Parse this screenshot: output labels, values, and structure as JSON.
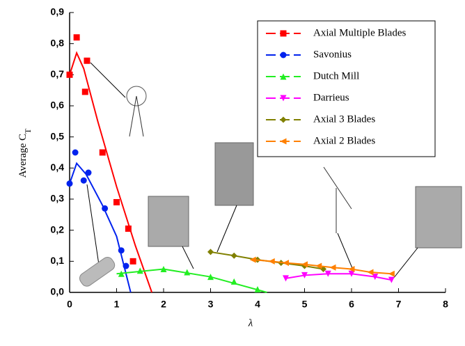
{
  "chart_data": {
    "type": "scatter",
    "x_label": "λ",
    "y_label": "Average C",
    "y_label_sub": "T",
    "xlim": [
      0,
      8
    ],
    "ylim": [
      0,
      0.9
    ],
    "xticks": [
      0,
      1,
      2,
      3,
      4,
      5,
      6,
      7,
      8
    ],
    "yticks": [
      {
        "value": 0,
        "label": "0,0"
      },
      {
        "value": 0.1,
        "label": "0,1"
      },
      {
        "value": 0.2,
        "label": "0,2"
      },
      {
        "value": 0.3,
        "label": "0,3"
      },
      {
        "value": 0.4,
        "label": "0,4"
      },
      {
        "value": 0.5,
        "label": "0,5"
      },
      {
        "value": 0.6,
        "label": "0,6"
      },
      {
        "value": 0.7,
        "label": "0,7"
      },
      {
        "value": 0.8,
        "label": "0,8"
      },
      {
        "value": 0.9,
        "label": "0,9"
      }
    ],
    "legend": "top-right",
    "series": [
      {
        "name": "Axial Multiple Blades",
        "color": "#ff0000",
        "marker": "square",
        "x": [
          0.0,
          0.15,
          0.33,
          0.37,
          0.7,
          1.0,
          1.25,
          1.35
        ],
        "values": [
          0.7,
          0.82,
          0.645,
          0.745,
          0.45,
          0.29,
          0.205,
          0.1
        ],
        "curve": {
          "x": [
            0,
            0.15,
            0.3,
            0.6,
            1.0,
            1.4,
            1.75
          ],
          "values": [
            0.7,
            0.77,
            0.72,
            0.55,
            0.34,
            0.15,
            0.0
          ]
        }
      },
      {
        "name": "Savonius",
        "color": "#0022ee",
        "marker": "circle",
        "x": [
          0.0,
          0.12,
          0.3,
          0.4,
          0.75,
          1.1,
          1.2
        ],
        "values": [
          0.35,
          0.45,
          0.36,
          0.385,
          0.27,
          0.135,
          0.085
        ],
        "curve": {
          "x": [
            0,
            0.15,
            0.35,
            0.7,
            1.0,
            1.3
          ],
          "values": [
            0.35,
            0.415,
            0.38,
            0.28,
            0.18,
            0.0
          ]
        }
      },
      {
        "name": "Dutch Mill",
        "color": "#22ee22",
        "marker": "triangle-up",
        "x": [
          1.1,
          1.5,
          2.0,
          2.5,
          3.0,
          3.5,
          4.0
        ],
        "values": [
          0.06,
          0.07,
          0.075,
          0.065,
          0.05,
          0.035,
          0.01
        ],
        "curve": {
          "x": [
            1.0,
            2.0,
            3.0,
            4.2
          ],
          "values": [
            0.06,
            0.075,
            0.05,
            0.0
          ]
        }
      },
      {
        "name": "Darrieus",
        "color": "#ff00ff",
        "marker": "triangle-down",
        "x": [
          4.6,
          5.0,
          5.5,
          6.0,
          6.5,
          6.85
        ],
        "values": [
          0.045,
          0.055,
          0.06,
          0.06,
          0.05,
          0.04
        ]
      },
      {
        "name": "Axial 3 Blades",
        "color": "#808000",
        "marker": "diamond",
        "x": [
          3.0,
          3.5,
          4.0,
          4.5,
          5.0,
          5.4
        ],
        "values": [
          0.13,
          0.118,
          0.105,
          0.095,
          0.085,
          0.075
        ]
      },
      {
        "name": "Axial 2 Blades",
        "color": "#ff8000",
        "marker": "triangle-left",
        "x": [
          3.9,
          4.3,
          4.6,
          5.0,
          5.3,
          5.6,
          6.0,
          6.4,
          6.85
        ],
        "values": [
          0.105,
          0.1,
          0.095,
          0.09,
          0.085,
          0.08,
          0.075,
          0.065,
          0.06
        ]
      }
    ]
  }
}
